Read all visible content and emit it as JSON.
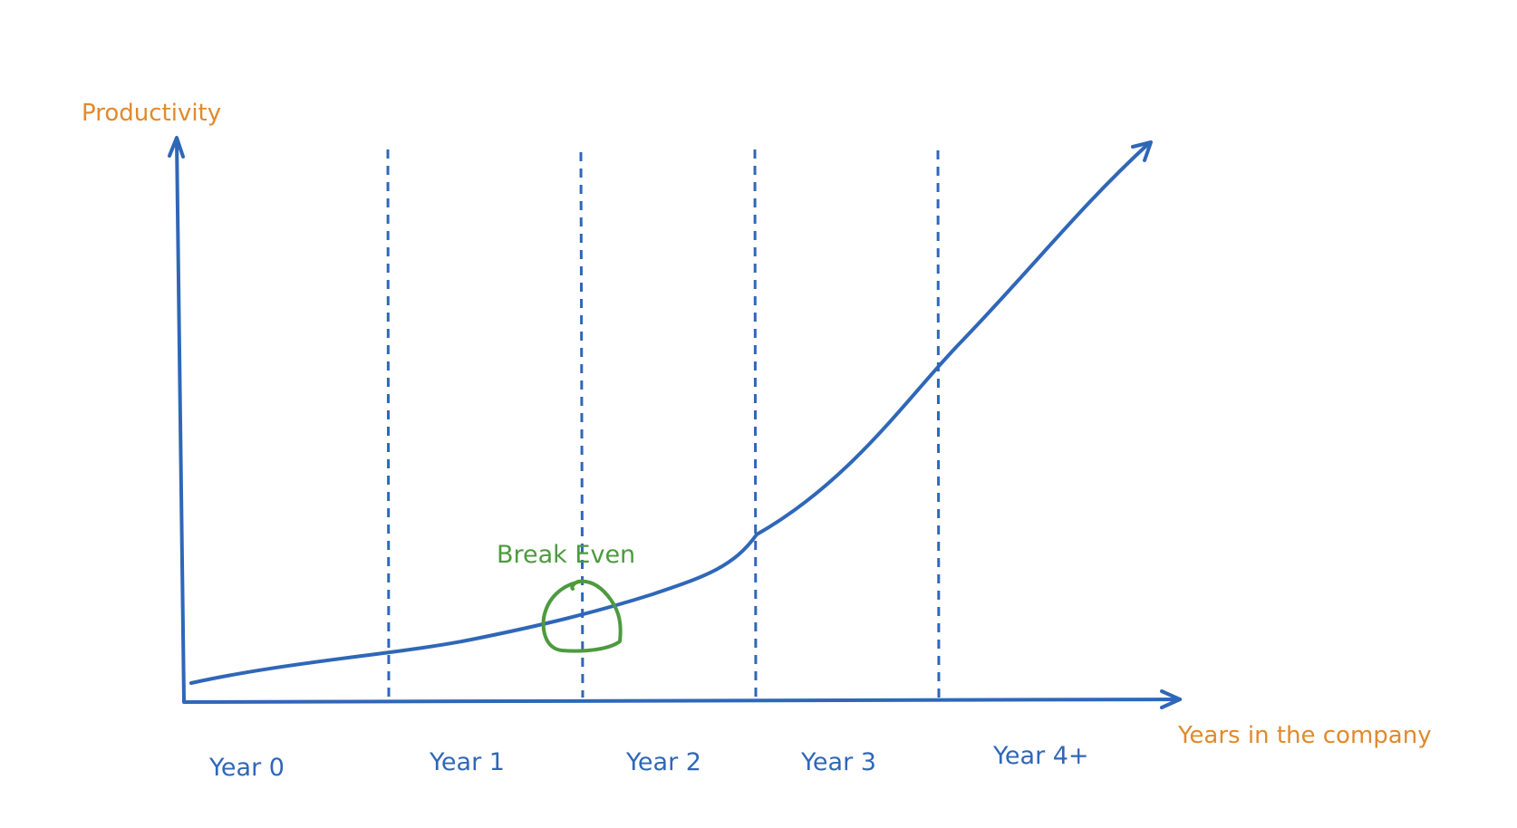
{
  "diagram": {
    "y_axis_label": "Productivity",
    "x_axis_label": "Years in the company",
    "break_even_label": "Break Even",
    "years": [
      "Year 0",
      "Year 1",
      "Year 2",
      "Year 3",
      "Year 4+"
    ]
  },
  "colors": {
    "line": "#2f67b8",
    "axis_label": "#e08a2c",
    "annotation": "#4d9a3f"
  }
}
